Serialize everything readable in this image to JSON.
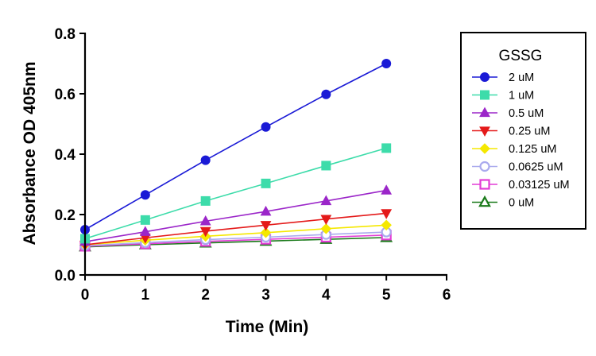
{
  "chart_data": {
    "type": "line",
    "xlabel": "Time (Min)",
    "ylabel": "Absorbance OD 405nm",
    "xlim": [
      0,
      6
    ],
    "ylim": [
      0,
      0.8
    ],
    "x_ticks": [
      "0",
      "1",
      "2",
      "3",
      "4",
      "5",
      "6"
    ],
    "y_ticks": [
      "0.0",
      "0.2",
      "0.4",
      "0.6",
      "0.8"
    ],
    "grid": false,
    "legend": {
      "title": "GSSG",
      "placement": "right"
    },
    "x": [
      0,
      1,
      2,
      3,
      4,
      5
    ],
    "series": [
      {
        "name": "2 uM",
        "color": "#1a1ad6",
        "marker": "circle-filled",
        "values": [
          0.15,
          0.265,
          0.38,
          0.49,
          0.598,
          0.7
        ]
      },
      {
        "name": "1 uM",
        "color": "#3ddcaa",
        "marker": "square-filled",
        "values": [
          0.12,
          0.182,
          0.245,
          0.303,
          0.362,
          0.42
        ]
      },
      {
        "name": "0.5 uM",
        "color": "#9b26c9",
        "marker": "triangle-up-filled",
        "values": [
          0.11,
          0.143,
          0.178,
          0.21,
          0.245,
          0.28
        ]
      },
      {
        "name": "0.25 uM",
        "color": "#e41a1a",
        "marker": "triangle-down-filled",
        "values": [
          0.1,
          0.123,
          0.145,
          0.165,
          0.185,
          0.204
        ]
      },
      {
        "name": "0.125 uM",
        "color": "#f5e800",
        "marker": "diamond-filled",
        "values": [
          0.1,
          0.115,
          0.128,
          0.14,
          0.153,
          0.165
        ]
      },
      {
        "name": "0.0625 uM",
        "color": "#aaaaee",
        "marker": "circle-open",
        "values": [
          0.097,
          0.107,
          0.117,
          0.125,
          0.134,
          0.142
        ]
      },
      {
        "name": "0.03125 uM",
        "color": "#e23dd6",
        "marker": "square-open",
        "values": [
          0.095,
          0.103,
          0.111,
          0.118,
          0.125,
          0.132
        ]
      },
      {
        "name": "0 uM",
        "color": "#1a7a1a",
        "marker": "triangle-up-open",
        "values": [
          0.093,
          0.1,
          0.106,
          0.112,
          0.118,
          0.124
        ]
      }
    ]
  }
}
